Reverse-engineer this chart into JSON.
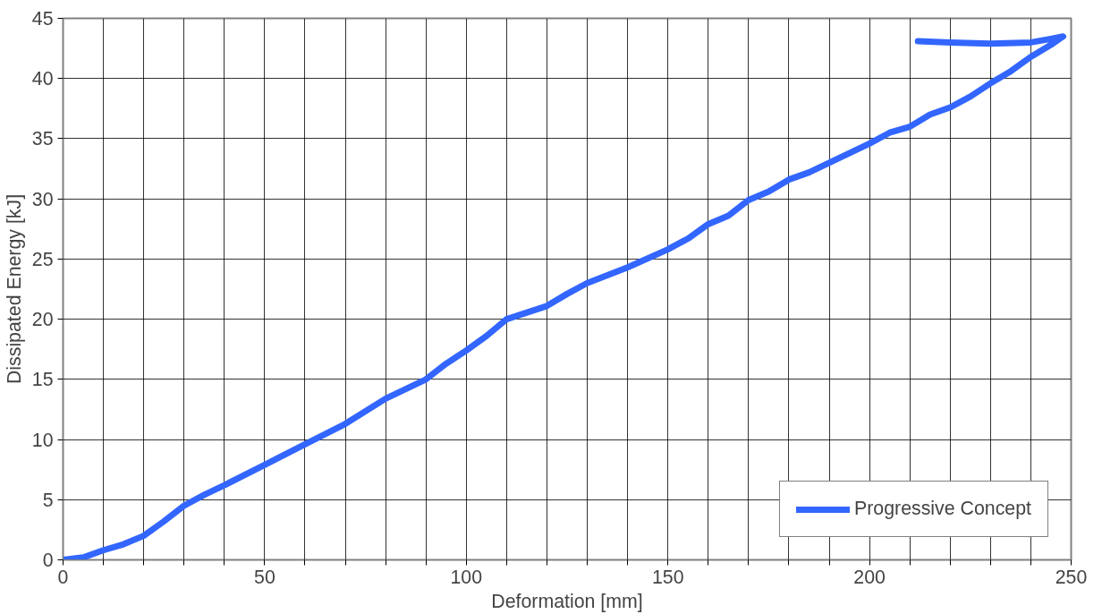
{
  "chart_data": {
    "type": "line",
    "xlabel": "Deformation [mm]",
    "ylabel": "Dissipated Energy [kJ]",
    "xlim": [
      0,
      250
    ],
    "ylim": [
      0,
      45
    ],
    "xticks": [
      0,
      {
        "value": 10,
        "label": null
      },
      {
        "value": 20,
        "label": null
      },
      {
        "value": 30,
        "label": null
      },
      {
        "value": 40,
        "label": null
      },
      50,
      {
        "value": 60,
        "label": null
      },
      {
        "value": 70,
        "label": null
      },
      {
        "value": 80,
        "label": null
      },
      {
        "value": 90,
        "label": null
      },
      100,
      {
        "value": 110,
        "label": null
      },
      {
        "value": 120,
        "label": null
      },
      {
        "value": 130,
        "label": null
      },
      {
        "value": 140,
        "label": null
      },
      150,
      {
        "value": 160,
        "label": null
      },
      {
        "value": 170,
        "label": null
      },
      {
        "value": 180,
        "label": null
      },
      {
        "value": 190,
        "label": null
      },
      200,
      {
        "value": 210,
        "label": null
      },
      {
        "value": 220,
        "label": null
      },
      {
        "value": 230,
        "label": null
      },
      {
        "value": 240,
        "label": null
      },
      250
    ],
    "yticks": [
      0,
      5,
      10,
      15,
      20,
      25,
      30,
      35,
      40,
      45
    ],
    "grid": true,
    "legend": "bottom right",
    "marker": "none",
    "line_style": "solid",
    "series": [
      {
        "name": "Progressive Concept",
        "color": "#3366ff",
        "x": [
          0,
          5,
          10,
          15,
          20,
          25,
          30,
          35,
          40,
          50,
          60,
          70,
          80,
          90,
          95,
          100,
          105,
          110,
          120,
          125,
          130,
          140,
          150,
          155,
          160,
          165,
          170,
          175,
          180,
          185,
          190,
          195,
          200,
          205,
          210,
          215,
          220,
          225,
          230,
          235,
          240,
          245,
          248,
          245,
          240,
          230,
          220,
          212
        ],
        "values": [
          0,
          0.2,
          0.8,
          1.3,
          2,
          3.2,
          4.5,
          5.4,
          6.2,
          7.9,
          9.6,
          11.3,
          13.4,
          15,
          16.3,
          17.4,
          18.6,
          20,
          21.1,
          22.1,
          23,
          24.3,
          25.8,
          26.7,
          27.9,
          28.6,
          29.9,
          30.6,
          31.6,
          32.2,
          33,
          33.8,
          34.6,
          35.5,
          36,
          37,
          37.6,
          38.5,
          39.6,
          40.6,
          41.8,
          42.8,
          43.5,
          43.3,
          43,
          42.9,
          43,
          43.1
        ]
      }
    ]
  }
}
